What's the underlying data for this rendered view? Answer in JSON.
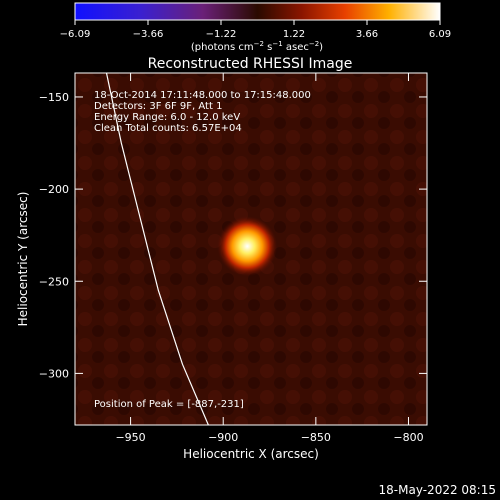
{
  "chart_data": {
    "type": "heatmap",
    "title": "Reconstructed RHESSI Image",
    "xlabel": "Heliocentric X (arcsec)",
    "ylabel": "Heliocentric Y (arcsec)",
    "xlim": [
      -980,
      -790
    ],
    "ylim": [
      -328,
      -137
    ],
    "x_ticks": [
      -950,
      -900,
      -850,
      -800
    ],
    "y_ticks": [
      -150,
      -200,
      -250,
      -300
    ],
    "x_tick_labels": [
      "−950",
      "−900",
      "−850",
      "−800"
    ],
    "y_tick_labels": [
      "−150",
      "−200",
      "−250",
      "−300"
    ],
    "colorbar": {
      "min": -6.09,
      "max": 6.09,
      "tick_labels": [
        "−6.09",
        "−3.66",
        "−1.22",
        "1.22",
        "3.66",
        "6.09"
      ],
      "unit_prefix": "(photons cm",
      "unit_exp1": "−2",
      "unit_mid": " s",
      "unit_exp2": "−1",
      "unit_suffix1": " asec",
      "unit_exp3": "−2",
      "unit_suffix2": ")"
    },
    "source": {
      "x": -887,
      "y": -231
    },
    "limb_curve": [
      [
        -963,
        -137
      ],
      [
        -955,
        -175
      ],
      [
        -945,
        -215
      ],
      [
        -935,
        -255
      ],
      [
        -922,
        -295
      ],
      [
        -908,
        -328
      ]
    ],
    "annotations": [
      "18-Oct-2014 17:11:48.000 to 17:15:48.000",
      "Detectors: 3F 6F 9F, Att 1",
      "Energy Range: 6.0 - 12.0 keV",
      "Clean     Total counts: 6.57E+04"
    ],
    "peak_label": "Position of Peak = [-887,-231]"
  },
  "footer": {
    "timestamp": "18-May-2022 08:15"
  },
  "colors": {
    "background": "#000000",
    "axis": "#ffffff",
    "limb": "#ffffff"
  }
}
